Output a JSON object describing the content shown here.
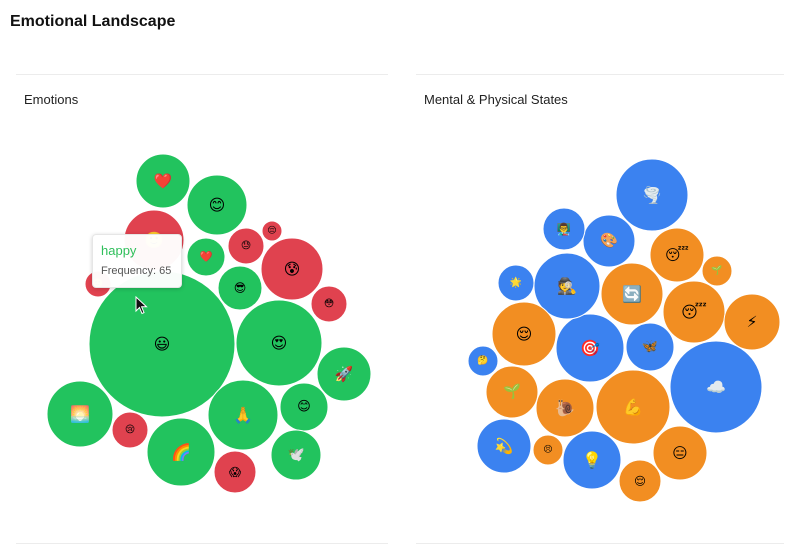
{
  "page": {
    "title": "Emotional Landscape"
  },
  "colors": {
    "green": "#22c35e",
    "red": "#e0424f",
    "blue": "#3b82f0",
    "orange": "#f28e22"
  },
  "tooltip": {
    "name": "happy",
    "frequency_label": "Frequency: 65"
  },
  "chart_data": [
    {
      "type": "bubble",
      "title": "Emotions",
      "bubbles": [
        {
          "icon": "😃",
          "group": "green",
          "value": 65
        },
        {
          "icon": "😍",
          "group": "green",
          "value": 13
        },
        {
          "icon": "🙏",
          "group": "green",
          "value": 12
        },
        {
          "icon": "🌈",
          "group": "green",
          "value": 12
        },
        {
          "icon": "🌅",
          "group": "green",
          "value": 10
        },
        {
          "icon": "❤️",
          "group": "green",
          "value": 7
        },
        {
          "icon": "😊",
          "group": "green",
          "value": 9
        },
        {
          "icon": "🚀",
          "group": "green",
          "value": 7
        },
        {
          "icon": "😊",
          "group": "green",
          "value": 6
        },
        {
          "icon": "🕊️",
          "group": "green",
          "value": 6
        },
        {
          "icon": "❤️",
          "group": "green",
          "value": 5
        },
        {
          "icon": "😎",
          "group": "green",
          "value": 5
        },
        {
          "icon": "😰",
          "group": "red",
          "value": 9
        },
        {
          "icon": "🙂",
          "group": "red",
          "value": 9
        },
        {
          "icon": "😱",
          "group": "red",
          "value": 4
        },
        {
          "icon": "😢",
          "group": "red",
          "value": 3
        },
        {
          "icon": "😳",
          "group": "red",
          "value": 3
        },
        {
          "icon": "😓",
          "group": "red",
          "value": 3
        },
        {
          "icon": "🙂",
          "group": "red",
          "value": 2
        },
        {
          "icon": "😔",
          "group": "red",
          "value": 1
        }
      ]
    },
    {
      "type": "bubble",
      "title": "Mental & Physical States",
      "bubbles": [
        {
          "icon": "☁️",
          "group": "blue",
          "value": 20
        },
        {
          "icon": "🌪️",
          "group": "blue",
          "value": 12
        },
        {
          "icon": "🎯",
          "group": "blue",
          "value": 11
        },
        {
          "icon": "🕵️",
          "group": "blue",
          "value": 10
        },
        {
          "icon": "💫",
          "group": "blue",
          "value": 7
        },
        {
          "icon": "💡",
          "group": "blue",
          "value": 8
        },
        {
          "icon": "🎨",
          "group": "blue",
          "value": 6
        },
        {
          "icon": "🦋",
          "group": "blue",
          "value": 5
        },
        {
          "icon": "👨‍🏫",
          "group": "blue",
          "value": 4
        },
        {
          "icon": "🌟",
          "group": "blue",
          "value": 3
        },
        {
          "icon": "🤔",
          "group": "blue",
          "value": 2
        },
        {
          "icon": "💪",
          "group": "orange",
          "value": 14
        },
        {
          "icon": "🔄",
          "group": "orange",
          "value": 9
        },
        {
          "icon": "😌",
          "group": "orange",
          "value": 9
        },
        {
          "icon": "😴",
          "group": "orange",
          "value": 8
        },
        {
          "icon": "😑",
          "group": "orange",
          "value": 7
        },
        {
          "icon": "🐌",
          "group": "orange",
          "value": 7
        },
        {
          "icon": "😴",
          "group": "orange",
          "value": 6
        },
        {
          "icon": "⚡",
          "group": "orange",
          "value": 6
        },
        {
          "icon": "🌱",
          "group": "orange",
          "value": 6
        },
        {
          "icon": "😌",
          "group": "orange",
          "value": 4
        },
        {
          "icon": "😣",
          "group": "orange",
          "value": 2
        },
        {
          "icon": "🌱",
          "group": "orange",
          "value": 2
        }
      ]
    }
  ]
}
